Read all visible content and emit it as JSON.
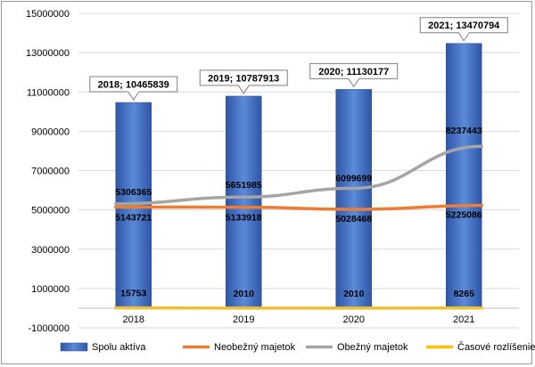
{
  "chart_data": {
    "type": "bar",
    "categories": [
      "2018",
      "2019",
      "2020",
      "2021"
    ],
    "ylim": [
      -1000000,
      15000000
    ],
    "yticks": [
      "-1000000",
      "1000000",
      "3000000",
      "5000000",
      "7000000",
      "9000000",
      "11000000",
      "13000000",
      "15000000"
    ],
    "ytick_values": [
      -1000000,
      1000000,
      3000000,
      5000000,
      7000000,
      9000000,
      11000000,
      13000000,
      15000000
    ],
    "grid": true,
    "legend_position": "bottom",
    "series": [
      {
        "name": "Spolu aktíva",
        "kind": "bar",
        "color": "#4472C4",
        "values": [
          10465839,
          10787913,
          11130177,
          13470794
        ],
        "labels": [
          "2018; 10465839",
          "2019; 10787913",
          "2020; 11130177",
          "2021; 13470794"
        ]
      },
      {
        "name": "Neobežný majetok",
        "kind": "line",
        "color": "#ED7D31",
        "values": [
          5143721,
          5133918,
          5028468,
          5225086
        ],
        "labels": [
          "5143721",
          "5133918",
          "5028468",
          "5225086"
        ]
      },
      {
        "name": "Obežný majetok",
        "kind": "line",
        "color": "#A5A5A5",
        "values": [
          5306365,
          5651985,
          6099699,
          8237443
        ],
        "labels": [
          "5306365",
          "5651985",
          "6099699",
          "8237443"
        ]
      },
      {
        "name": "Časové rozlíšenie",
        "kind": "line",
        "color": "#FFC000",
        "values": [
          15753,
          2010,
          2010,
          8265
        ],
        "labels": [
          "15753",
          "2010",
          "2010",
          "8265"
        ]
      }
    ]
  }
}
